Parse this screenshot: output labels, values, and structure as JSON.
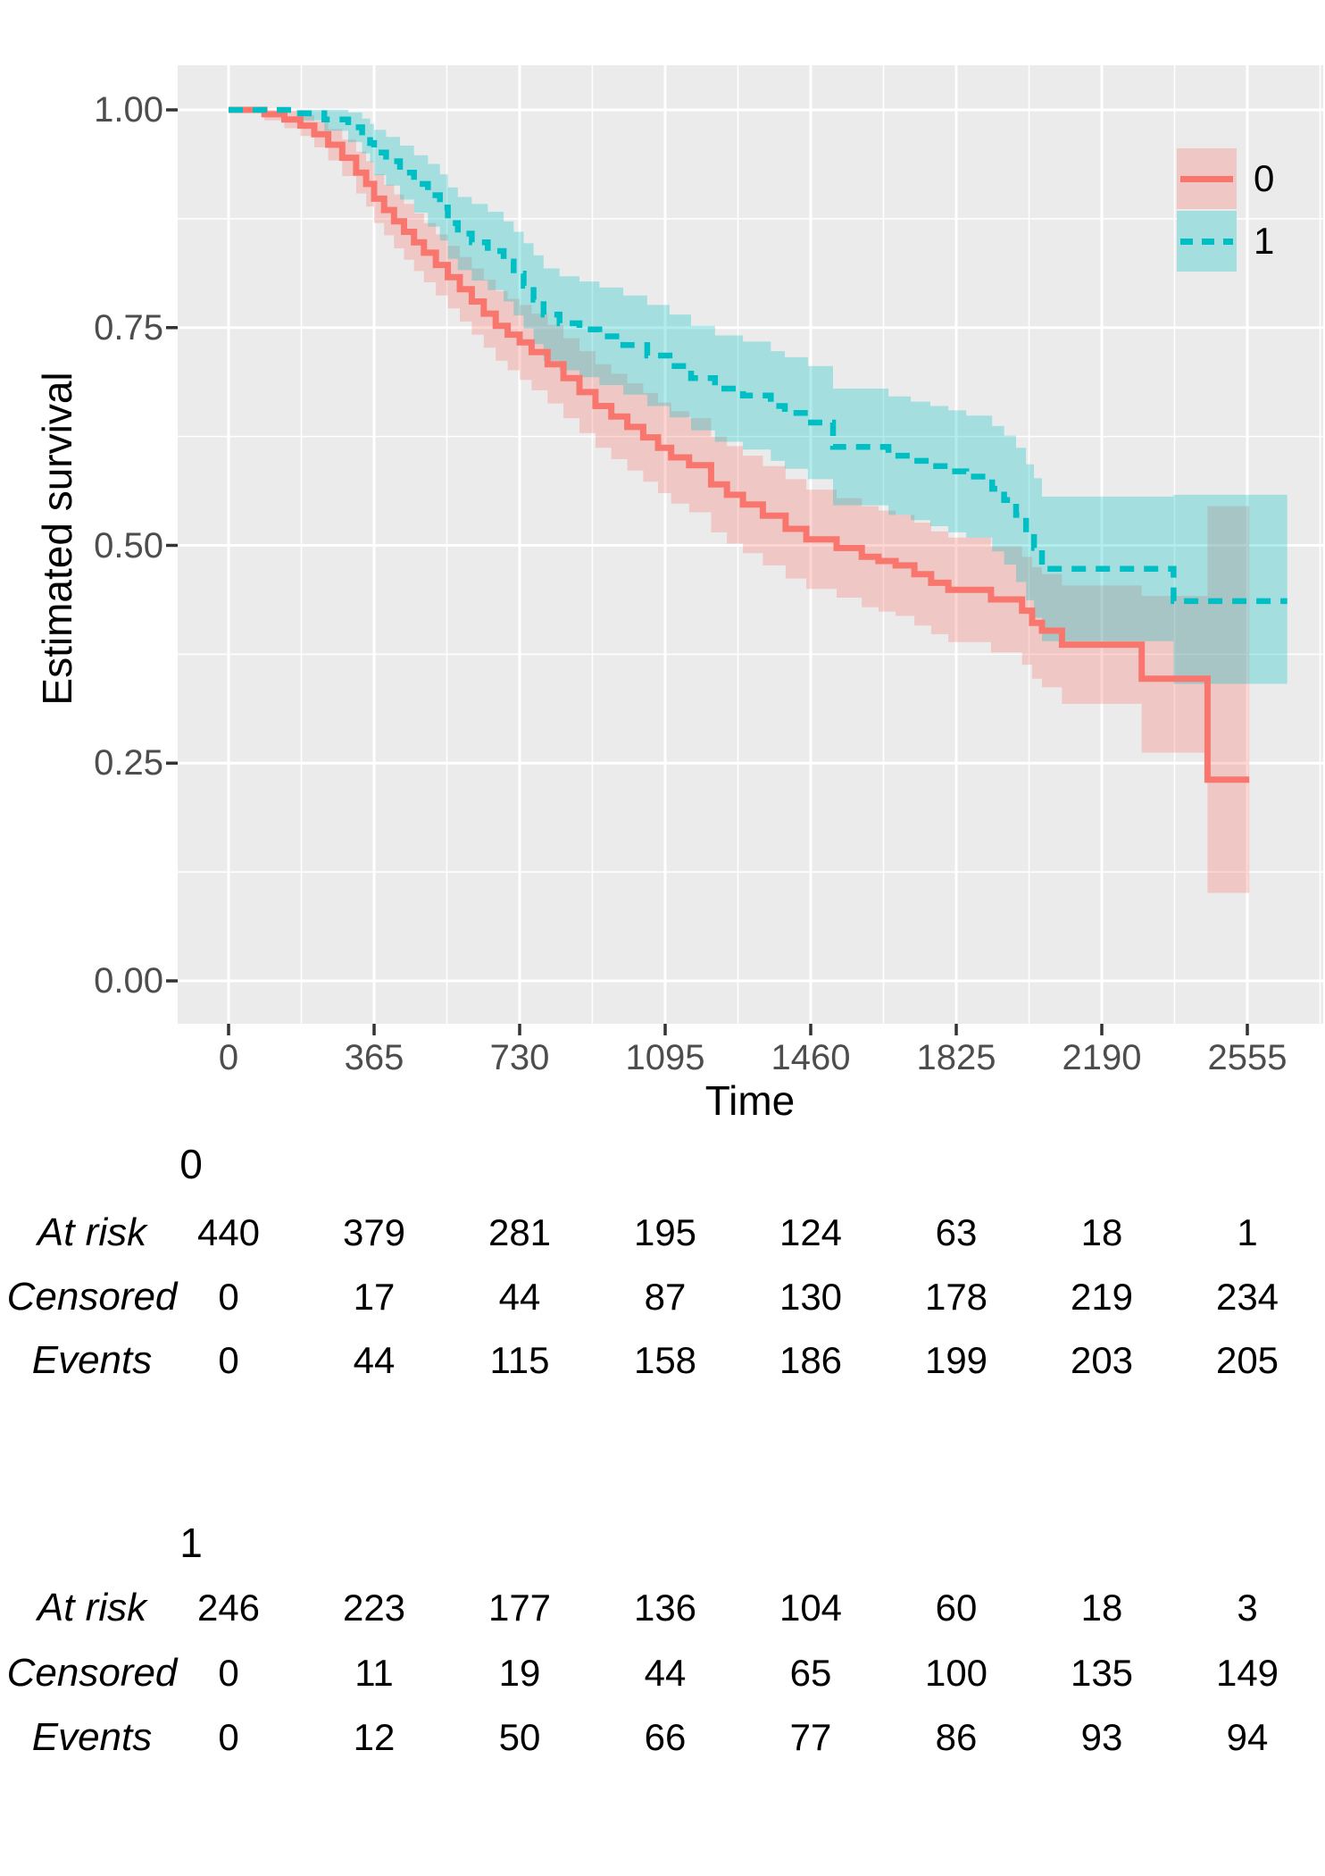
{
  "chart": {
    "y_axis": {
      "title": "Estimated survival",
      "ticks": [
        {
          "label": "1.00",
          "value": 1.0
        },
        {
          "label": "0.75",
          "value": 0.75
        },
        {
          "label": "0.50",
          "value": 0.5
        },
        {
          "label": "0.25",
          "value": 0.25
        },
        {
          "label": "0.00",
          "value": 0.0
        }
      ],
      "minor": [
        0.875,
        0.625,
        0.375,
        0.125
      ]
    },
    "x_axis": {
      "title": "Time",
      "ticks": [
        {
          "label": "0",
          "value": 0
        },
        {
          "label": "365",
          "value": 365
        },
        {
          "label": "730",
          "value": 730
        },
        {
          "label": "1095",
          "value": 1095
        },
        {
          "label": "1460",
          "value": 1460
        },
        {
          "label": "1825",
          "value": 1825
        },
        {
          "label": "2190",
          "value": 2190
        },
        {
          "label": "2555",
          "value": 2555
        }
      ],
      "minor": [
        182.5,
        547.5,
        912.5,
        1277.5,
        1642.5,
        2007.5,
        2372.5,
        2737.5
      ]
    },
    "legend": {
      "items": [
        {
          "label": "0",
          "color": "#F8766D",
          "dashed": false
        },
        {
          "label": "1",
          "color": "#00BFC4",
          "dashed": true
        }
      ]
    },
    "panel_color": "#EBEBEB",
    "grid_color": "#FFFFFF",
    "tick_text_color": "#4D4D4D"
  },
  "chart_data": {
    "type": "line",
    "subtype": "kaplan-meier-step-curves-with-ci-bands",
    "title": "",
    "xlabel": "Time",
    "ylabel": "Estimated survival",
    "xlim": [
      0,
      2743
    ],
    "ylim": [
      0,
      1
    ],
    "grid": true,
    "legend_position": "top-right-inside",
    "series": [
      {
        "name": "0",
        "color": "#F8766D",
        "linestyle": "solid",
        "band_opacity": 0.3,
        "points_format": [
          "time",
          "survival",
          "ci_lower",
          "ci_upper"
        ],
        "points": [
          [
            0,
            1.0,
            1.0,
            1.0
          ],
          [
            90,
            0.995,
            0.988,
            1.0
          ],
          [
            140,
            0.989,
            0.979,
            0.999
          ],
          [
            180,
            0.982,
            0.97,
            0.994
          ],
          [
            215,
            0.972,
            0.957,
            0.987
          ],
          [
            250,
            0.96,
            0.942,
            0.978
          ],
          [
            285,
            0.945,
            0.924,
            0.966
          ],
          [
            320,
            0.928,
            0.904,
            0.952
          ],
          [
            345,
            0.915,
            0.889,
            0.941
          ],
          [
            365,
            0.898,
            0.87,
            0.926
          ],
          [
            390,
            0.885,
            0.856,
            0.914
          ],
          [
            415,
            0.872,
            0.841,
            0.903
          ],
          [
            440,
            0.86,
            0.828,
            0.892
          ],
          [
            465,
            0.848,
            0.815,
            0.881
          ],
          [
            490,
            0.836,
            0.802,
            0.87
          ],
          [
            520,
            0.822,
            0.787,
            0.857
          ],
          [
            550,
            0.808,
            0.772,
            0.844
          ],
          [
            580,
            0.794,
            0.757,
            0.831
          ],
          [
            610,
            0.78,
            0.742,
            0.818
          ],
          [
            640,
            0.766,
            0.727,
            0.805
          ],
          [
            670,
            0.752,
            0.712,
            0.792
          ],
          [
            700,
            0.742,
            0.701,
            0.783
          ],
          [
            730,
            0.733,
            0.69,
            0.776
          ],
          [
            760,
            0.722,
            0.678,
            0.766
          ],
          [
            800,
            0.708,
            0.663,
            0.753
          ],
          [
            840,
            0.692,
            0.646,
            0.738
          ],
          [
            880,
            0.676,
            0.629,
            0.723
          ],
          [
            920,
            0.66,
            0.612,
            0.708
          ],
          [
            960,
            0.648,
            0.599,
            0.697
          ],
          [
            1000,
            0.636,
            0.586,
            0.686
          ],
          [
            1040,
            0.624,
            0.573,
            0.675
          ],
          [
            1077,
            0.612,
            0.56,
            0.664
          ],
          [
            1110,
            0.601,
            0.548,
            0.654
          ],
          [
            1155,
            0.592,
            0.538,
            0.646
          ],
          [
            1210,
            0.57,
            0.515,
            0.625
          ],
          [
            1250,
            0.558,
            0.502,
            0.614
          ],
          [
            1290,
            0.547,
            0.491,
            0.603
          ],
          [
            1340,
            0.534,
            0.477,
            0.591
          ],
          [
            1397,
            0.519,
            0.462,
            0.576
          ],
          [
            1449,
            0.507,
            0.45,
            0.564
          ],
          [
            1525,
            0.497,
            0.44,
            0.554
          ],
          [
            1588,
            0.487,
            0.429,
            0.545
          ],
          [
            1630,
            0.482,
            0.424,
            0.54
          ],
          [
            1673,
            0.477,
            0.419,
            0.535
          ],
          [
            1720,
            0.467,
            0.408,
            0.526
          ],
          [
            1762,
            0.457,
            0.398,
            0.516
          ],
          [
            1805,
            0.449,
            0.389,
            0.509
          ],
          [
            1912,
            0.438,
            0.377,
            0.499
          ],
          [
            1990,
            0.425,
            0.363,
            0.487
          ],
          [
            2015,
            0.411,
            0.347,
            0.475
          ],
          [
            2040,
            0.402,
            0.337,
            0.467
          ],
          [
            2090,
            0.386,
            0.318,
            0.454
          ],
          [
            2290,
            0.347,
            0.262,
            0.442
          ],
          [
            2455,
            0.231,
            0.101,
            0.545
          ],
          [
            2560,
            0.231,
            0.101,
            0.545
          ]
        ]
      },
      {
        "name": "1",
        "color": "#00BFC4",
        "linestyle": "dashed",
        "band_opacity": 0.3,
        "points_format": [
          "time",
          "survival",
          "ci_lower",
          "ci_upper"
        ],
        "points": [
          [
            0,
            1.0,
            1.0,
            1.0
          ],
          [
            170,
            0.996,
            0.988,
            1.0
          ],
          [
            240,
            0.989,
            0.976,
            1.0
          ],
          [
            300,
            0.98,
            0.963,
            0.997
          ],
          [
            335,
            0.97,
            0.95,
            0.99
          ],
          [
            355,
            0.962,
            0.94,
            0.984
          ],
          [
            365,
            0.951,
            0.925,
            0.977
          ],
          [
            395,
            0.941,
            0.913,
            0.969
          ],
          [
            430,
            0.928,
            0.897,
            0.959
          ],
          [
            465,
            0.915,
            0.882,
            0.948
          ],
          [
            500,
            0.902,
            0.866,
            0.938
          ],
          [
            530,
            0.888,
            0.85,
            0.926
          ],
          [
            550,
            0.87,
            0.829,
            0.911
          ],
          [
            575,
            0.858,
            0.816,
            0.9
          ],
          [
            610,
            0.848,
            0.804,
            0.892
          ],
          [
            650,
            0.838,
            0.793,
            0.883
          ],
          [
            690,
            0.826,
            0.78,
            0.872
          ],
          [
            715,
            0.812,
            0.764,
            0.86
          ],
          [
            740,
            0.798,
            0.749,
            0.847
          ],
          [
            765,
            0.782,
            0.731,
            0.833
          ],
          [
            790,
            0.765,
            0.712,
            0.818
          ],
          [
            830,
            0.755,
            0.701,
            0.809
          ],
          [
            880,
            0.748,
            0.693,
            0.803
          ],
          [
            930,
            0.74,
            0.684,
            0.796
          ],
          [
            990,
            0.73,
            0.673,
            0.787
          ],
          [
            1050,
            0.718,
            0.66,
            0.776
          ],
          [
            1106,
            0.706,
            0.647,
            0.765
          ],
          [
            1160,
            0.692,
            0.632,
            0.752
          ],
          [
            1220,
            0.68,
            0.619,
            0.741
          ],
          [
            1290,
            0.672,
            0.61,
            0.734
          ],
          [
            1360,
            0.66,
            0.597,
            0.723
          ],
          [
            1395,
            0.652,
            0.588,
            0.716
          ],
          [
            1453,
            0.641,
            0.576,
            0.706
          ],
          [
            1516,
            0.613,
            0.546,
            0.68
          ],
          [
            1655,
            0.603,
            0.535,
            0.671
          ],
          [
            1711,
            0.597,
            0.529,
            0.665
          ],
          [
            1760,
            0.591,
            0.522,
            0.66
          ],
          [
            1805,
            0.585,
            0.515,
            0.655
          ],
          [
            1850,
            0.579,
            0.509,
            0.649
          ],
          [
            1915,
            0.565,
            0.493,
            0.637
          ],
          [
            1945,
            0.552,
            0.478,
            0.626
          ],
          [
            1975,
            0.535,
            0.458,
            0.612
          ],
          [
            2000,
            0.515,
            0.437,
            0.593
          ],
          [
            2020,
            0.497,
            0.417,
            0.577
          ],
          [
            2040,
            0.473,
            0.39,
            0.556
          ],
          [
            2370,
            0.436,
            0.341,
            0.558
          ],
          [
            2655,
            0.436,
            0.341,
            0.558
          ]
        ]
      }
    ]
  },
  "risk_tables": [
    {
      "group": "0",
      "rows": [
        {
          "label": "At risk",
          "values": [
            440,
            379,
            281,
            195,
            124,
            63,
            18,
            1
          ]
        },
        {
          "label": "Censored",
          "values": [
            0,
            17,
            44,
            87,
            130,
            178,
            219,
            234
          ]
        },
        {
          "label": "Events",
          "values": [
            0,
            44,
            115,
            158,
            186,
            199,
            203,
            205
          ]
        }
      ]
    },
    {
      "group": "1",
      "rows": [
        {
          "label": "At risk",
          "values": [
            246,
            223,
            177,
            136,
            104,
            60,
            18,
            3
          ]
        },
        {
          "label": "Censored",
          "values": [
            0,
            11,
            19,
            44,
            65,
            100,
            135,
            149
          ]
        },
        {
          "label": "Events",
          "values": [
            0,
            12,
            50,
            66,
            77,
            86,
            93,
            94
          ]
        }
      ]
    }
  ]
}
